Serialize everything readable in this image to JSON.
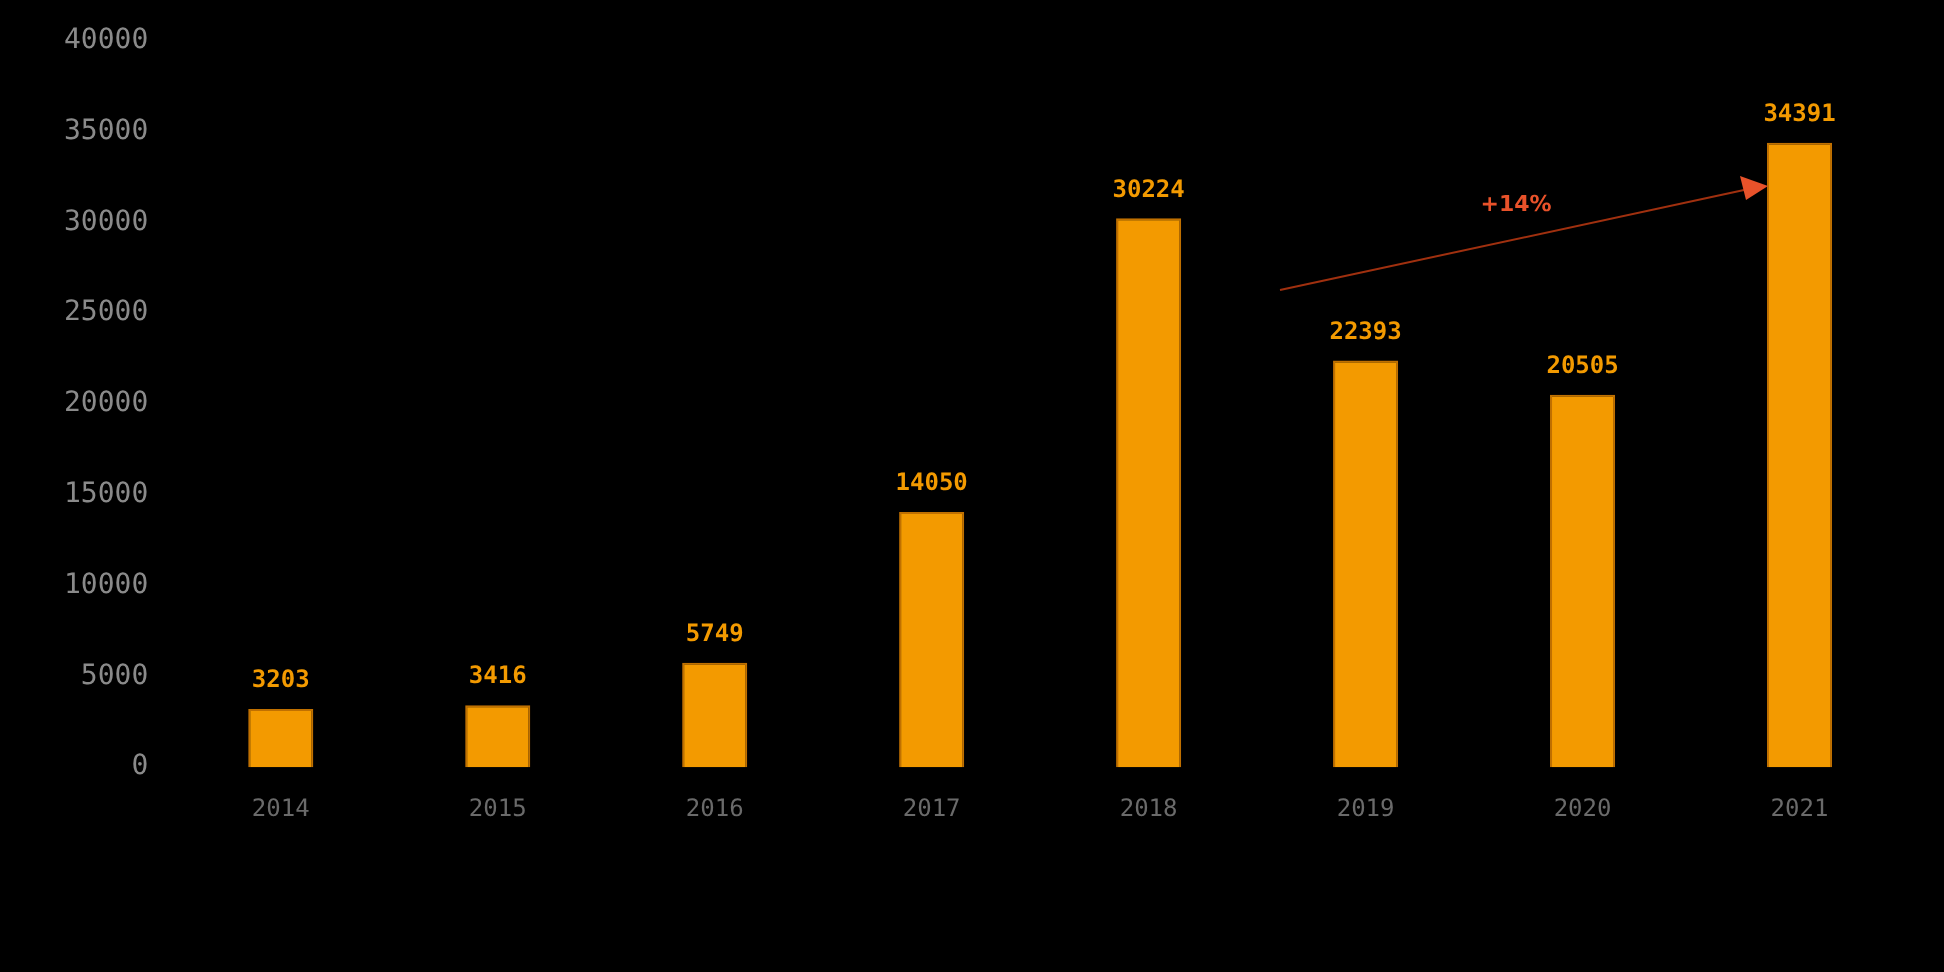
{
  "chart_data": {
    "type": "bar",
    "categories": [
      "2014",
      "2015",
      "2016",
      "2017",
      "2018",
      "2019",
      "2020",
      "2021"
    ],
    "values": [
      3203,
      3416,
      5749,
      14050,
      30224,
      22393,
      20505,
      34391
    ],
    "color": "#f39a00",
    "ylim": [
      0,
      40000
    ],
    "yticks": [
      0,
      5000,
      10000,
      15000,
      20000,
      25000,
      30000,
      35000,
      40000
    ],
    "grid": false,
    "legend": false,
    "data_labels": true,
    "annotations": [
      "+14%"
    ]
  }
}
